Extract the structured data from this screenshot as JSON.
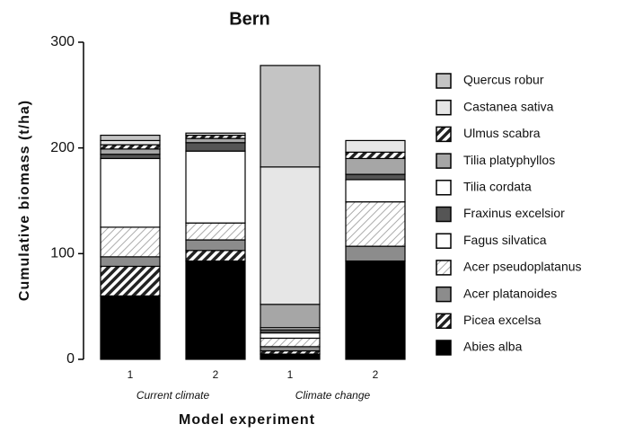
{
  "chart_data": {
    "type": "stacked_bar",
    "title": "Bern",
    "xlabel": "Model experiment",
    "ylabel": "Cumulative biomass (t/ha)",
    "categories": [
      "1",
      "2",
      "1",
      "2"
    ],
    "group_labels": [
      "Current climate",
      "Climate change"
    ],
    "ylim": [
      0,
      300
    ],
    "yticks": [
      0,
      100,
      200,
      300
    ],
    "series": [
      {
        "name": "Abies alba",
        "color": "#000000",
        "hatch": "none",
        "values": [
          60,
          93,
          5,
          93
        ]
      },
      {
        "name": "Picea excelsa",
        "color": "#333333",
        "hatch": "dark",
        "values": [
          28,
          10,
          3,
          0
        ]
      },
      {
        "name": "Acer platanoides",
        "color": "#8c8c8c",
        "hatch": "none",
        "values": [
          9,
          10,
          4,
          14
        ]
      },
      {
        "name": "Acer pseudoplatanus",
        "color": "#f2f2f2",
        "hatch": "light",
        "values": [
          28,
          16,
          8,
          42
        ]
      },
      {
        "name": "Fagus silvatica",
        "color": "#ffffff",
        "hatch": "none",
        "values": [
          65,
          68,
          5,
          21
        ]
      },
      {
        "name": "Fraxinus excelsior",
        "color": "#555555",
        "hatch": "none",
        "values": [
          4,
          8,
          3,
          5
        ]
      },
      {
        "name": "Tilia cordata",
        "color": "#ffffff",
        "hatch": "none",
        "values": [
          0,
          0,
          2,
          0
        ]
      },
      {
        "name": "Tilia platyphyllos",
        "color": "#a6a6a6",
        "hatch": "none",
        "values": [
          5,
          4,
          22,
          15
        ]
      },
      {
        "name": "Ulmus scabra",
        "color": "#ffffff",
        "hatch": "dark",
        "values": [
          4,
          3,
          0,
          6
        ]
      },
      {
        "name": "Castanea sativa",
        "color": "#e6e6e6",
        "hatch": "none",
        "values": [
          4,
          2,
          130,
          11
        ]
      },
      {
        "name": "Quercus robur",
        "color": "#c4c4c4",
        "hatch": "none",
        "values": [
          5,
          0,
          96,
          0
        ]
      }
    ]
  }
}
